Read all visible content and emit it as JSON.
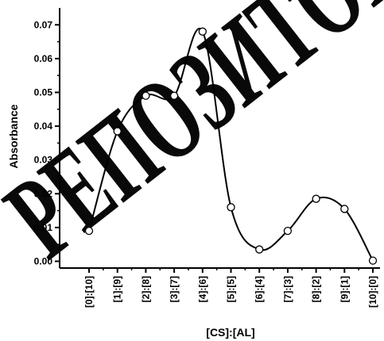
{
  "watermark": {
    "text": "РЕПОЗИТОРИЙ"
  },
  "chart_data": {
    "type": "line",
    "xlabel": "[CS]:[AL]",
    "ylabel": "Absorbance",
    "categories": [
      "[0]:[10]",
      "[1]:[9]",
      "[2]:[8]",
      "[3]:[7]",
      "[4]:[6]",
      "[5]:[5]",
      "[6]:[4]",
      "[7]:[3]",
      "[8]:[2]",
      "[9]:[1]",
      "[10]:[0]"
    ],
    "values": [
      0.009,
      0.0385,
      0.049,
      0.049,
      0.068,
      0.016,
      0.0035,
      0.009,
      0.0185,
      0.0155,
      0.0002
    ],
    "ylim": [
      -0.002,
      0.075
    ],
    "yticks": [
      "0.00",
      "0.01",
      "0.02",
      "0.03",
      "0.04",
      "0.05",
      "0.06",
      "0.07"
    ],
    "grid": false,
    "smooth": true,
    "marker": "open-circle",
    "line_color": "#000000"
  }
}
